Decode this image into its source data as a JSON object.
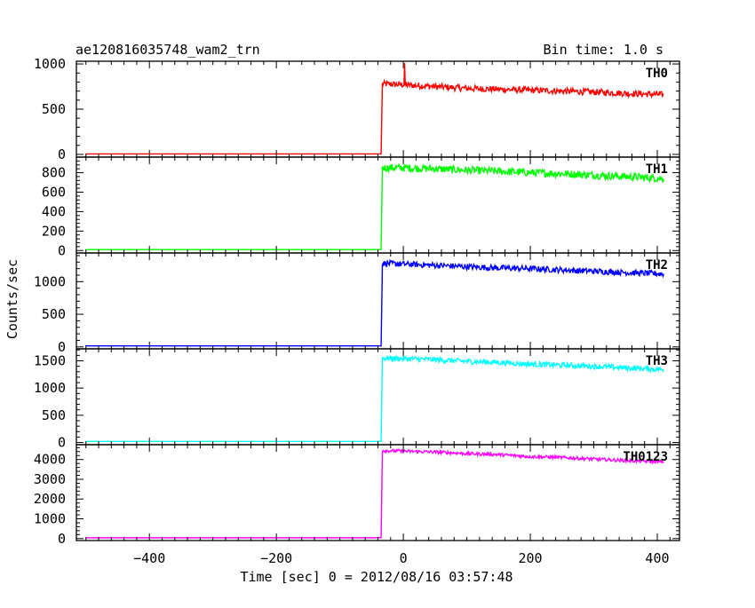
{
  "header": {
    "left_title": "ae120816035748_wam2_trn",
    "right_title": "Bin time: 1.0 s"
  },
  "chart_data": {
    "type": "line",
    "xlabel": "Time [sec] 0 = 2012/08/16 03:57:48",
    "ylabel": "Counts/sec",
    "xlim": [
      -515,
      435
    ],
    "xticks": [
      -400,
      -200,
      0,
      200,
      400
    ],
    "xtick_labels": [
      "−400",
      "−200",
      "0",
      "200",
      "400"
    ],
    "bin_time_s": 1.0,
    "grid": false,
    "panels": [
      {
        "label": "TH0",
        "color": "#ff0000",
        "ylim": [
          -30,
          1030
        ],
        "yticks": [
          0,
          500,
          1000
        ],
        "ytick_labels": [
          "0",
          "500",
          "1000"
        ],
        "series": [
          {
            "x": -500,
            "y": 5
          },
          {
            "x": -35,
            "y": 5
          },
          {
            "x": -33,
            "y": 780
          },
          {
            "x": 0,
            "y": 770
          },
          {
            "x": 50,
            "y": 750
          },
          {
            "x": 100,
            "y": 730
          },
          {
            "x": 150,
            "y": 720
          },
          {
            "x": 200,
            "y": 710
          },
          {
            "x": 250,
            "y": 700
          },
          {
            "x": 300,
            "y": 690
          },
          {
            "x": 350,
            "y": 675
          },
          {
            "x": 410,
            "y": 660
          }
        ],
        "noise": 35,
        "spike": {
          "x": 2,
          "y": 1010
        }
      },
      {
        "label": "TH1",
        "color": "#00ff00",
        "ylim": [
          -25,
          960
        ],
        "yticks": [
          0,
          200,
          400,
          600,
          800
        ],
        "ytick_labels": [
          "0",
          "200",
          "400",
          "600",
          "800"
        ],
        "series": [
          {
            "x": -500,
            "y": 10
          },
          {
            "x": -35,
            "y": 10
          },
          {
            "x": -33,
            "y": 850
          },
          {
            "x": 0,
            "y": 850
          },
          {
            "x": 50,
            "y": 840
          },
          {
            "x": 100,
            "y": 825
          },
          {
            "x": 150,
            "y": 815
          },
          {
            "x": 200,
            "y": 800
          },
          {
            "x": 250,
            "y": 790
          },
          {
            "x": 300,
            "y": 775
          },
          {
            "x": 350,
            "y": 760
          },
          {
            "x": 410,
            "y": 740
          }
        ],
        "noise": 40
      },
      {
        "label": "TH2",
        "color": "#0000ff",
        "ylim": [
          -30,
          1440
        ],
        "yticks": [
          0,
          500,
          1000
        ],
        "ytick_labels": [
          "0",
          "500",
          "1000"
        ],
        "series": [
          {
            "x": -500,
            "y": 15
          },
          {
            "x": -35,
            "y": 15
          },
          {
            "x": -33,
            "y": 1280
          },
          {
            "x": 0,
            "y": 1270
          },
          {
            "x": 50,
            "y": 1250
          },
          {
            "x": 100,
            "y": 1230
          },
          {
            "x": 150,
            "y": 1210
          },
          {
            "x": 200,
            "y": 1200
          },
          {
            "x": 250,
            "y": 1180
          },
          {
            "x": 300,
            "y": 1160
          },
          {
            "x": 350,
            "y": 1140
          },
          {
            "x": 410,
            "y": 1120
          }
        ],
        "noise": 45
      },
      {
        "label": "TH3",
        "color": "#00ffff",
        "ylim": [
          -40,
          1720
        ],
        "yticks": [
          0,
          500,
          1000,
          1500
        ],
        "ytick_labels": [
          "0",
          "500",
          "1000",
          "1500"
        ],
        "series": [
          {
            "x": -500,
            "y": 20
          },
          {
            "x": -35,
            "y": 20
          },
          {
            "x": -33,
            "y": 1550
          },
          {
            "x": 0,
            "y": 1540
          },
          {
            "x": 50,
            "y": 1520
          },
          {
            "x": 100,
            "y": 1490
          },
          {
            "x": 150,
            "y": 1470
          },
          {
            "x": 200,
            "y": 1440
          },
          {
            "x": 250,
            "y": 1420
          },
          {
            "x": 300,
            "y": 1400
          },
          {
            "x": 350,
            "y": 1370
          },
          {
            "x": 410,
            "y": 1340
          }
        ],
        "noise": 50
      },
      {
        "label": "TH0123",
        "color": "#ff00ff",
        "ylim": [
          -100,
          4750
        ],
        "yticks": [
          0,
          1000,
          2000,
          3000,
          4000
        ],
        "ytick_labels": [
          "0",
          "1000",
          "2000",
          "3000",
          "4000"
        ],
        "series": [
          {
            "x": -500,
            "y": 40
          },
          {
            "x": -35,
            "y": 40
          },
          {
            "x": -33,
            "y": 4450
          },
          {
            "x": 0,
            "y": 4420
          },
          {
            "x": 50,
            "y": 4380
          },
          {
            "x": 100,
            "y": 4300
          },
          {
            "x": 150,
            "y": 4250
          },
          {
            "x": 200,
            "y": 4150
          },
          {
            "x": 250,
            "y": 4100
          },
          {
            "x": 300,
            "y": 4020
          },
          {
            "x": 350,
            "y": 3950
          },
          {
            "x": 410,
            "y": 3880
          }
        ],
        "noise": 80
      }
    ]
  }
}
